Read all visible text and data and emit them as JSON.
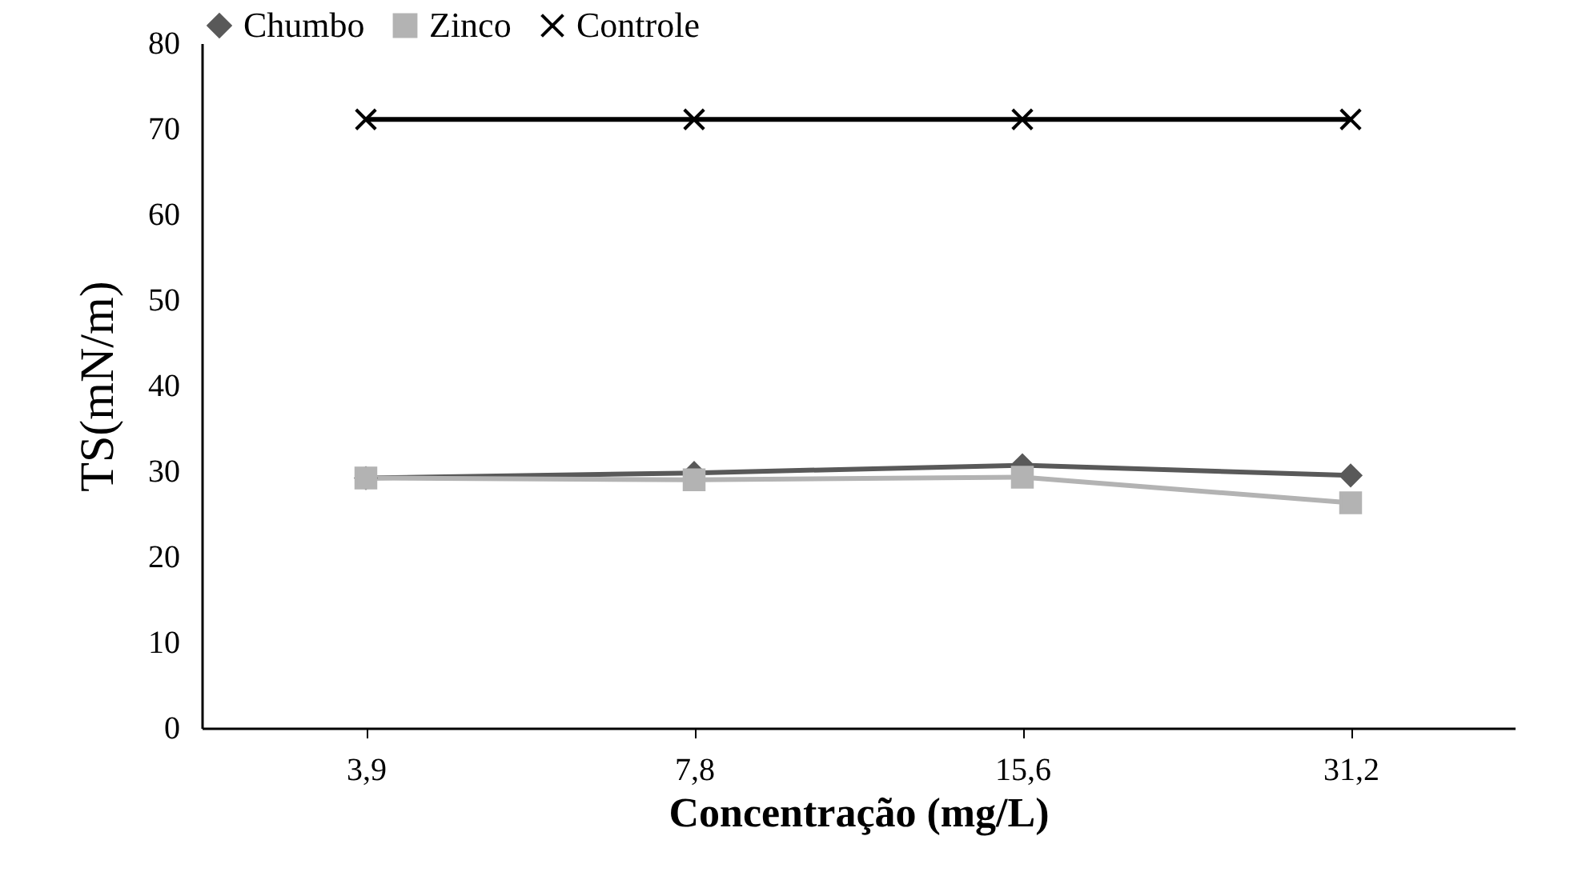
{
  "chart_data": {
    "type": "line",
    "xlabel": "Concentração (mg/L)",
    "ylabel": "TS(mN/m)",
    "categories": [
      "3,9",
      "7,8",
      "15,6",
      "31,2"
    ],
    "series": [
      {
        "name": "Chumbo",
        "color": "#595959",
        "marker": "diamond",
        "values": [
          29.2,
          29.8,
          30.7,
          29.5
        ]
      },
      {
        "name": "Zinco",
        "color": "#b3b3b3",
        "marker": "square",
        "values": [
          29.2,
          29.0,
          29.3,
          26.3
        ]
      },
      {
        "name": "Controle",
        "color": "#000000",
        "marker": "cross",
        "values": [
          71.1,
          71.1,
          71.1,
          71.1
        ]
      }
    ],
    "ylim": [
      0,
      80
    ],
    "yticks": [
      0,
      10,
      20,
      30,
      40,
      50,
      60,
      70,
      80
    ],
    "grid": false,
    "legend": "top"
  }
}
